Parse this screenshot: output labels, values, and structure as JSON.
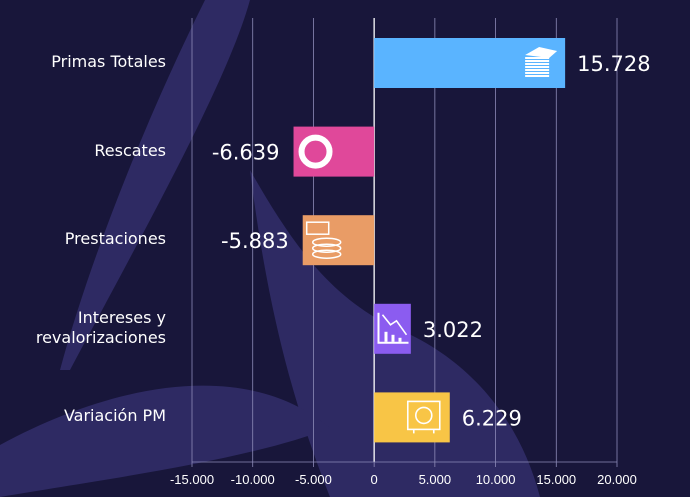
{
  "chart_data": {
    "type": "bar",
    "orientation": "horizontal",
    "title": "",
    "xlabel": "",
    "ylabel": "",
    "categories": [
      "Primas Totales",
      "Rescates",
      "Prestaciones",
      "Intereses y\nrevalorizaciones",
      "Variación PM"
    ],
    "values": [
      15728,
      -6639,
      -5883,
      3022,
      6229
    ],
    "value_labels": [
      "15.728",
      "-6.639",
      "-5.883",
      "3.022",
      "6.229"
    ],
    "bar_colors": [
      "#5ab4ff",
      "#e0489a",
      "#e99c66",
      "#8b5cf0",
      "#f8c546"
    ],
    "bar_icons": [
      "money-stack-icon",
      "lifebuoy-icon",
      "cash-coins-icon",
      "declining-chart-icon",
      "safe-icon"
    ],
    "xlim": [
      -15000,
      20000
    ],
    "x_ticks": [
      -15000,
      -10000,
      -5000,
      0,
      5000,
      10000,
      15000,
      20000
    ],
    "x_tick_labels": [
      "-15.000",
      "-10.000",
      "-5.000",
      "0",
      "5.000",
      "10.000",
      "15.000",
      "20.000"
    ],
    "grid": true,
    "legend": "none"
  },
  "colors": {
    "background": "#18163a",
    "decor": "#2e2a63",
    "grid": "#8d8bb8",
    "text": "#ffffff"
  }
}
